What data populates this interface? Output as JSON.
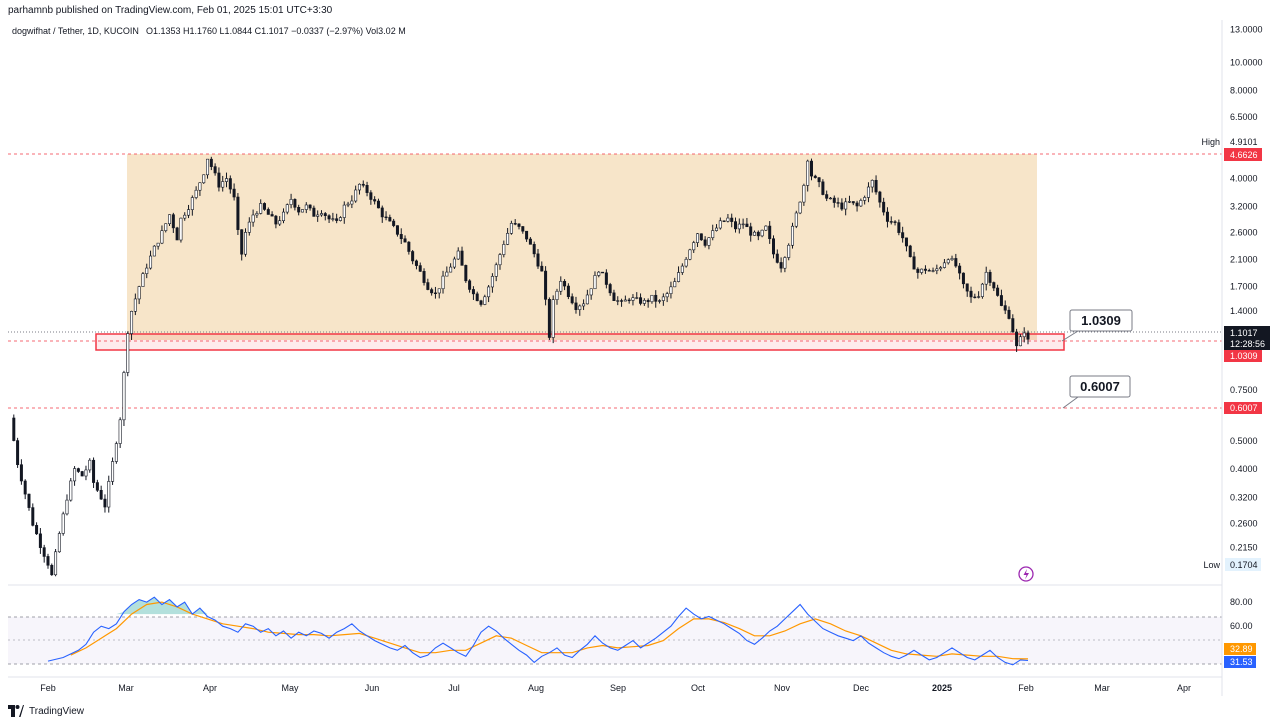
{
  "header": {
    "published": "parhamnb published on TradingView.com, Feb 01, 2025 15:01 UTC+3:30",
    "symbol": "dogwifhat / Tether, 1D, KUCOIN",
    "ohlc": "O1.1353 H1.1760 L1.0844 C1.1017 −0.0337 (−2.97%) Vol3.02 M"
  },
  "footer": {
    "brand": "TradingView"
  },
  "colors": {
    "range_fill": "#f6e1c0",
    "support_zone": "#f23645",
    "candle": "#131722",
    "rsi": "#2962ff",
    "rsi_ma": "#ff9800",
    "price_tag": "#f23645"
  },
  "chart_data": [
    {
      "type": "candlestick",
      "scale": "log",
      "ylim": [
        0.16,
        14
      ],
      "x_tick_labels": [
        "Feb",
        "Mar",
        "Apr",
        "May",
        "Jun",
        "Jul",
        "Aug",
        "Sep",
        "Oct",
        "Nov",
        "Dec",
        "2025",
        "Feb",
        "Mar",
        "Apr"
      ],
      "y_tick_labels": [
        "13.0000",
        "10.0000",
        "8.0000",
        "6.5000",
        "4.0000",
        "3.2000",
        "2.6000",
        "2.1000",
        "1.7000",
        "1.4000",
        "0.7500",
        "0.5000",
        "0.4000",
        "0.3200",
        "0.2600",
        "0.2150"
      ],
      "y_tick_values": [
        13,
        10,
        8,
        6.5,
        4,
        3.2,
        2.6,
        2.1,
        1.7,
        1.4,
        0.75,
        0.5,
        0.4,
        0.32,
        0.26,
        0.215
      ],
      "high_label": "High",
      "high_value": "4.9101",
      "low_label": "Low",
      "low_value": "0.1704",
      "current_price": "1.1017",
      "countdown": "12:28:56",
      "levels": [
        {
          "value": 4.6626,
          "label": "4.6626"
        },
        {
          "value": 1.0309,
          "label": "1.0309",
          "callout": "1.0309"
        },
        {
          "value": 0.6007,
          "label": "0.6007",
          "callout": "0.6007"
        }
      ],
      "range_box": {
        "top": 4.6626,
        "bottom": 1.0309
      },
      "support_zone": {
        "top": 1.075,
        "bottom": 0.985
      },
      "price_path": [
        [
          0,
          0.6
        ],
        [
          2,
          0.42
        ],
        [
          4,
          0.33
        ],
        [
          6,
          0.26
        ],
        [
          8,
          0.22
        ],
        [
          10,
          0.19
        ],
        [
          11,
          0.172
        ],
        [
          13,
          0.24
        ],
        [
          15,
          0.32
        ],
        [
          17,
          0.4
        ],
        [
          19,
          0.38
        ],
        [
          21,
          0.42
        ],
        [
          22,
          0.36
        ],
        [
          24,
          0.32
        ],
        [
          25,
          0.3
        ],
        [
          27,
          0.42
        ],
        [
          29,
          0.6
        ],
        [
          30,
          0.85
        ],
        [
          31,
          1.2
        ],
        [
          32,
          1.4
        ],
        [
          34,
          1.7
        ],
        [
          36,
          2.0
        ],
        [
          38,
          2.3
        ],
        [
          40,
          2.6
        ],
        [
          42,
          3.0
        ],
        [
          44,
          2.5
        ],
        [
          45,
          2.9
        ],
        [
          47,
          3.2
        ],
        [
          49,
          3.6
        ],
        [
          51,
          4.2
        ],
        [
          52,
          4.7
        ],
        [
          53,
          4.4
        ],
        [
          55,
          3.8
        ],
        [
          57,
          4.0
        ],
        [
          59,
          3.4
        ],
        [
          60,
          2.6
        ],
        [
          61,
          2.2
        ],
        [
          62,
          2.6
        ],
        [
          64,
          3.0
        ],
        [
          66,
          3.2
        ],
        [
          68,
          3.0
        ],
        [
          70,
          2.8
        ],
        [
          72,
          3.0
        ],
        [
          74,
          3.4
        ],
        [
          76,
          3.1
        ],
        [
          78,
          3.2
        ],
        [
          80,
          3.0
        ],
        [
          82,
          3.1
        ],
        [
          84,
          2.9
        ],
        [
          86,
          2.8
        ],
        [
          88,
          3.2
        ],
        [
          90,
          3.4
        ],
        [
          92,
          3.8
        ],
        [
          94,
          3.6
        ],
        [
          96,
          3.3
        ],
        [
          98,
          3.0
        ],
        [
          100,
          2.8
        ],
        [
          102,
          2.6
        ],
        [
          104,
          2.4
        ],
        [
          106,
          2.1
        ],
        [
          108,
          1.9
        ],
        [
          110,
          1.7
        ],
        [
          112,
          1.6
        ],
        [
          114,
          1.8
        ],
        [
          116,
          2.0
        ],
        [
          118,
          2.2
        ],
        [
          120,
          1.8
        ],
        [
          122,
          1.6
        ],
        [
          124,
          1.5
        ],
        [
          126,
          1.7
        ],
        [
          128,
          2.0
        ],
        [
          130,
          2.4
        ],
        [
          132,
          2.8
        ],
        [
          134,
          2.7
        ],
        [
          136,
          2.5
        ],
        [
          138,
          2.2
        ],
        [
          140,
          1.9
        ],
        [
          141,
          1.5
        ],
        [
          142,
          1.15
        ],
        [
          143,
          1.5
        ],
        [
          145,
          1.8
        ],
        [
          147,
          1.6
        ],
        [
          149,
          1.45
        ],
        [
          151,
          1.5
        ],
        [
          153,
          1.7
        ],
        [
          155,
          1.95
        ],
        [
          157,
          1.75
        ],
        [
          159,
          1.55
        ],
        [
          161,
          1.48
        ],
        [
          163,
          1.55
        ],
        [
          165,
          1.52
        ],
        [
          167,
          1.5
        ],
        [
          169,
          1.55
        ],
        [
          171,
          1.5
        ],
        [
          173,
          1.6
        ],
        [
          175,
          1.75
        ],
        [
          177,
          2.0
        ],
        [
          179,
          2.3
        ],
        [
          181,
          2.6
        ],
        [
          183,
          2.4
        ],
        [
          185,
          2.6
        ],
        [
          187,
          2.8
        ],
        [
          189,
          2.9
        ],
        [
          191,
          2.7
        ],
        [
          193,
          2.8
        ],
        [
          195,
          2.6
        ],
        [
          197,
          2.5
        ],
        [
          199,
          2.7
        ],
        [
          201,
          2.2
        ],
        [
          203,
          2.0
        ],
        [
          205,
          2.4
        ],
        [
          207,
          3.0
        ],
        [
          209,
          3.8
        ],
        [
          210,
          4.7
        ],
        [
          211,
          4.1
        ],
        [
          213,
          3.8
        ],
        [
          215,
          3.4
        ],
        [
          217,
          3.3
        ],
        [
          219,
          3.2
        ],
        [
          221,
          3.3
        ],
        [
          223,
          3.2
        ],
        [
          225,
          3.5
        ],
        [
          227,
          3.9
        ],
        [
          229,
          3.3
        ],
        [
          231,
          2.9
        ],
        [
          233,
          2.8
        ],
        [
          235,
          2.5
        ],
        [
          237,
          2.1
        ],
        [
          239,
          1.9
        ],
        [
          241,
          1.95
        ],
        [
          243,
          1.9
        ],
        [
          245,
          2.0
        ],
        [
          247,
          2.15
        ],
        [
          249,
          2.0
        ],
        [
          251,
          1.7
        ],
        [
          253,
          1.55
        ],
        [
          255,
          1.6
        ],
        [
          257,
          1.9
        ],
        [
          259,
          1.7
        ],
        [
          261,
          1.45
        ],
        [
          263,
          1.35
        ],
        [
          264,
          1.2
        ],
        [
          265,
          1.05
        ],
        [
          266,
          1.12
        ],
        [
          267,
          1.2
        ],
        [
          268,
          1.1017
        ]
      ]
    },
    {
      "type": "line",
      "name": "",
      "ylim": [
        22,
        90
      ],
      "y_tick_labels": [
        "80.00",
        "60.00"
      ],
      "y_tick_values": [
        80,
        60
      ],
      "bands": [
        70,
        50,
        30
      ],
      "rsi_value": "31.53",
      "ma_value": "32.89",
      "rsi_path": [
        [
          10,
          31
        ],
        [
          14,
          34
        ],
        [
          18,
          40
        ],
        [
          20,
          45
        ],
        [
          22,
          55
        ],
        [
          24,
          60
        ],
        [
          26,
          58
        ],
        [
          28,
          62
        ],
        [
          30,
          72
        ],
        [
          32,
          78
        ],
        [
          34,
          82
        ],
        [
          36,
          80
        ],
        [
          38,
          84
        ],
        [
          40,
          78
        ],
        [
          42,
          82
        ],
        [
          44,
          76
        ],
        [
          46,
          80
        ],
        [
          48,
          70
        ],
        [
          50,
          75
        ],
        [
          52,
          68
        ],
        [
          54,
          65
        ],
        [
          56,
          60
        ],
        [
          58,
          58
        ],
        [
          60,
          55
        ],
        [
          62,
          62
        ],
        [
          64,
          60
        ],
        [
          66,
          55
        ],
        [
          68,
          58
        ],
        [
          70,
          52
        ],
        [
          72,
          56
        ],
        [
          74,
          50
        ],
        [
          76,
          55
        ],
        [
          78,
          52
        ],
        [
          80,
          56
        ],
        [
          82,
          54
        ],
        [
          84,
          50
        ],
        [
          86,
          55
        ],
        [
          88,
          58
        ],
        [
          90,
          62
        ],
        [
          92,
          56
        ],
        [
          94,
          52
        ],
        [
          96,
          48
        ],
        [
          98,
          45
        ],
        [
          100,
          42
        ],
        [
          102,
          40
        ],
        [
          104,
          44
        ],
        [
          106,
          38
        ],
        [
          108,
          34
        ],
        [
          110,
          36
        ],
        [
          112,
          42
        ],
        [
          114,
          46
        ],
        [
          116,
          42
        ],
        [
          118,
          38
        ],
        [
          120,
          35
        ],
        [
          122,
          44
        ],
        [
          124,
          55
        ],
        [
          126,
          60
        ],
        [
          128,
          56
        ],
        [
          130,
          50
        ],
        [
          132,
          45
        ],
        [
          134,
          40
        ],
        [
          136,
          36
        ],
        [
          138,
          30
        ],
        [
          140,
          35
        ],
        [
          142,
          38
        ],
        [
          144,
          42
        ],
        [
          146,
          36
        ],
        [
          148,
          34
        ],
        [
          150,
          40
        ],
        [
          152,
          45
        ],
        [
          154,
          52
        ],
        [
          156,
          46
        ],
        [
          158,
          42
        ],
        [
          160,
          40
        ],
        [
          162,
          44
        ],
        [
          164,
          48
        ],
        [
          166,
          42
        ],
        [
          168,
          46
        ],
        [
          170,
          50
        ],
        [
          172,
          55
        ],
        [
          174,
          60
        ],
        [
          176,
          68
        ],
        [
          178,
          75
        ],
        [
          180,
          70
        ],
        [
          182,
          66
        ],
        [
          184,
          68
        ],
        [
          186,
          65
        ],
        [
          188,
          62
        ],
        [
          190,
          58
        ],
        [
          192,
          54
        ],
        [
          194,
          48
        ],
        [
          196,
          45
        ],
        [
          198,
          50
        ],
        [
          200,
          56
        ],
        [
          202,
          60
        ],
        [
          204,
          66
        ],
        [
          206,
          72
        ],
        [
          208,
          78
        ],
        [
          210,
          70
        ],
        [
          212,
          64
        ],
        [
          214,
          58
        ],
        [
          216,
          55
        ],
        [
          218,
          52
        ],
        [
          220,
          50
        ],
        [
          222,
          48
        ],
        [
          224,
          52
        ],
        [
          226,
          46
        ],
        [
          228,
          42
        ],
        [
          230,
          38
        ],
        [
          232,
          35
        ],
        [
          234,
          33
        ],
        [
          236,
          36
        ],
        [
          238,
          40
        ],
        [
          240,
          36
        ],
        [
          242,
          32
        ],
        [
          244,
          34
        ],
        [
          246,
          38
        ],
        [
          248,
          42
        ],
        [
          250,
          38
        ],
        [
          252,
          34
        ],
        [
          254,
          32
        ],
        [
          256,
          36
        ],
        [
          258,
          40
        ],
        [
          260,
          34
        ],
        [
          262,
          30
        ],
        [
          264,
          28
        ],
        [
          266,
          32
        ],
        [
          268,
          31.5
        ]
      ],
      "ma_path": [
        [
          16,
          36
        ],
        [
          20,
          42
        ],
        [
          24,
          50
        ],
        [
          28,
          58
        ],
        [
          32,
          70
        ],
        [
          36,
          78
        ],
        [
          40,
          80
        ],
        [
          44,
          76
        ],
        [
          48,
          70
        ],
        [
          52,
          66
        ],
        [
          56,
          62
        ],
        [
          60,
          60
        ],
        [
          64,
          58
        ],
        [
          68,
          55
        ],
        [
          72,
          54
        ],
        [
          76,
          53
        ],
        [
          80,
          53
        ],
        [
          84,
          52
        ],
        [
          88,
          53
        ],
        [
          92,
          54
        ],
        [
          96,
          50
        ],
        [
          100,
          46
        ],
        [
          104,
          42
        ],
        [
          108,
          38
        ],
        [
          112,
          38
        ],
        [
          116,
          40
        ],
        [
          120,
          40
        ],
        [
          124,
          46
        ],
        [
          128,
          52
        ],
        [
          132,
          50
        ],
        [
          136,
          44
        ],
        [
          140,
          38
        ],
        [
          144,
          38
        ],
        [
          148,
          38
        ],
        [
          152,
          42
        ],
        [
          156,
          44
        ],
        [
          160,
          42
        ],
        [
          164,
          43
        ],
        [
          168,
          44
        ],
        [
          172,
          48
        ],
        [
          176,
          58
        ],
        [
          180,
          66
        ],
        [
          184,
          66
        ],
        [
          188,
          63
        ],
        [
          192,
          58
        ],
        [
          196,
          52
        ],
        [
          200,
          52
        ],
        [
          204,
          56
        ],
        [
          208,
          62
        ],
        [
          212,
          66
        ],
        [
          216,
          62
        ],
        [
          220,
          56
        ],
        [
          224,
          52
        ],
        [
          228,
          46
        ],
        [
          232,
          40
        ],
        [
          236,
          37
        ],
        [
          240,
          36
        ],
        [
          244,
          35
        ],
        [
          248,
          37
        ],
        [
          252,
          36
        ],
        [
          256,
          35
        ],
        [
          260,
          35
        ],
        [
          264,
          33
        ],
        [
          268,
          32.9
        ]
      ]
    }
  ]
}
